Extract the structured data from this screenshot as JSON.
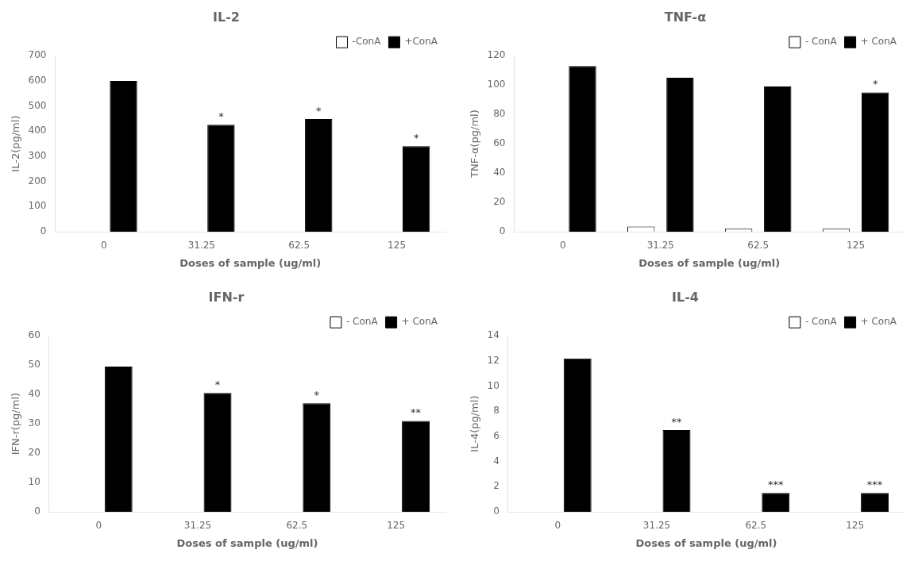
{
  "chart_data": [
    {
      "type": "bar",
      "title": "IL-2",
      "xlabel": "Doses of sample (ug/ml)",
      "ylabel": "IL-2(pg/ml)",
      "categories": [
        "0",
        "31.25",
        "62.5",
        "125"
      ],
      "series": [
        {
          "name": "-ConA",
          "color": "white",
          "values": [
            0,
            0,
            0,
            0
          ]
        },
        {
          "name": "+ConA",
          "color": "black",
          "values": [
            600,
            425,
            448,
            340
          ]
        }
      ],
      "ylim": [
        0,
        700
      ],
      "yticks": [
        0,
        100,
        200,
        300,
        400,
        500,
        600,
        700
      ],
      "grid": false,
      "legend": "upper right",
      "annotations": [
        {
          "text": "*",
          "x": "31.25",
          "y": 425,
          "series": "+ConA"
        },
        {
          "text": "*",
          "x": "62.5",
          "y": 448,
          "series": "+ConA"
        },
        {
          "text": "*",
          "x": "125",
          "y": 340,
          "series": "+ConA"
        }
      ]
    },
    {
      "type": "bar",
      "title": "TNF-α",
      "xlabel": "Doses of sample (ug/ml)",
      "ylabel": "TNF-α(pg/ml)",
      "categories": [
        "0",
        "31.25",
        "62.5",
        "125"
      ],
      "series": [
        {
          "name": "- ConA",
          "color": "white",
          "values": [
            0,
            3.5,
            2,
            2
          ]
        },
        {
          "name": "+ ConA",
          "color": "black",
          "values": [
            113,
            105,
            99,
            95
          ]
        }
      ],
      "ylim": [
        0,
        120
      ],
      "yticks": [
        0,
        20,
        40,
        60,
        80,
        100,
        120
      ],
      "grid": false,
      "legend": "upper right",
      "annotations": [
        {
          "text": "*",
          "x": "125",
          "y": 95,
          "series": "+ ConA"
        }
      ]
    },
    {
      "type": "bar",
      "title": "IFN-r",
      "xlabel": "Doses of sample (ug/ml)",
      "ylabel": "IFN-r(pg/ml)",
      "categories": [
        "0",
        "31.25",
        "62.5",
        "125"
      ],
      "series": [
        {
          "name": "- ConA",
          "color": "white",
          "values": [
            0,
            0,
            0,
            0
          ]
        },
        {
          "name": "+ ConA",
          "color": "black",
          "values": [
            49.5,
            40.5,
            37,
            31
          ]
        }
      ],
      "ylim": [
        0,
        60
      ],
      "yticks": [
        0,
        10,
        20,
        30,
        40,
        50,
        60
      ],
      "grid": false,
      "legend": "upper right",
      "annotations": [
        {
          "text": "*",
          "x": "31.25",
          "y": 40.5,
          "series": "+ ConA"
        },
        {
          "text": "*",
          "x": "62.5",
          "y": 37,
          "series": "+ ConA"
        },
        {
          "text": "**",
          "x": "125",
          "y": 31,
          "series": "+ ConA"
        }
      ]
    },
    {
      "type": "bar",
      "title": "IL-4",
      "xlabel": "Doses of sample (ug/ml)",
      "ylabel": "IL-4(pg/ml)",
      "categories": [
        "0",
        "31.25",
        "62.5",
        "125"
      ],
      "series": [
        {
          "name": "- ConA",
          "color": "white",
          "values": [
            0,
            0,
            0,
            0
          ]
        },
        {
          "name": "+ ConA",
          "color": "black",
          "values": [
            12.2,
            6.5,
            1.5,
            1.5
          ]
        }
      ],
      "ylim": [
        0,
        14
      ],
      "yticks": [
        0,
        2,
        4,
        6,
        8,
        10,
        12,
        14
      ],
      "grid": false,
      "legend": "upper right",
      "annotations": [
        {
          "text": "**",
          "x": "31.25",
          "y": 6.5,
          "series": "+ ConA"
        },
        {
          "text": "***",
          "x": "62.5",
          "y": 1.5,
          "series": "+ ConA"
        },
        {
          "text": "***",
          "x": "125",
          "y": 1.5,
          "series": "+ ConA"
        }
      ]
    }
  ]
}
